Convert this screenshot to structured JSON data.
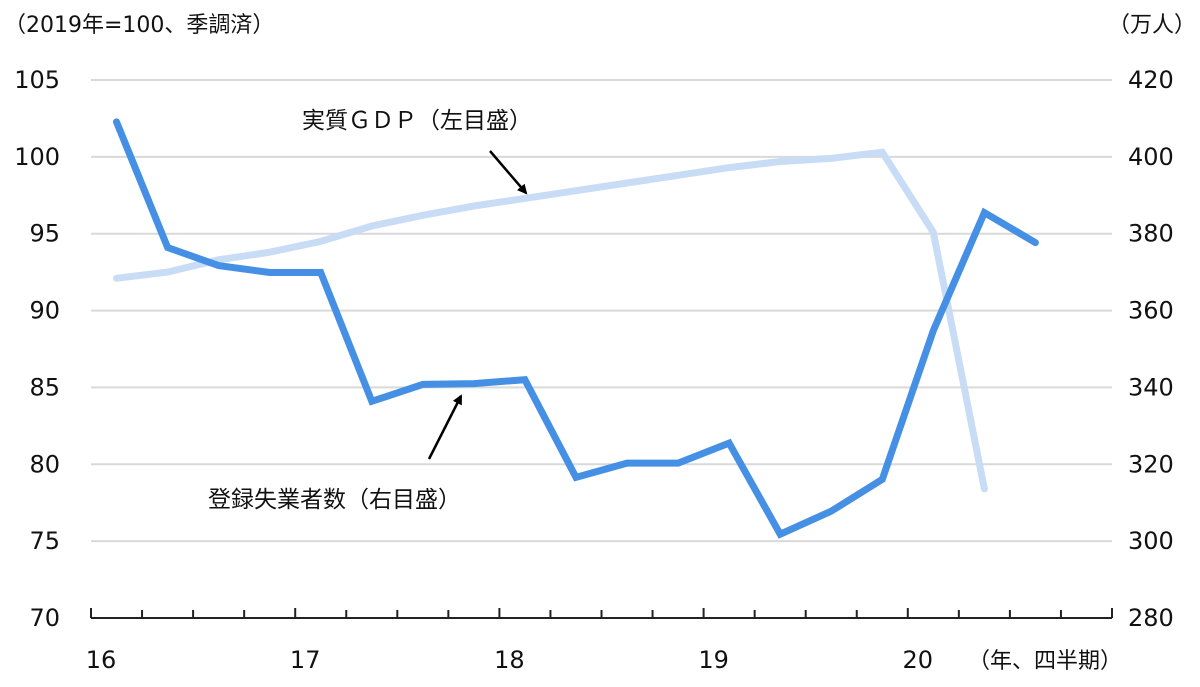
{
  "chart_data": {
    "type": "line",
    "title": "",
    "left_axis": {
      "unit_label": "（2019年=100、季調済）",
      "range": [
        70,
        105
      ],
      "ticks": [
        "105",
        "100",
        "95",
        "90",
        "85",
        "80",
        "75",
        "70"
      ]
    },
    "right_axis": {
      "unit_label": "（万人）",
      "range": [
        280,
        420
      ],
      "ticks": [
        "420",
        "400",
        "380",
        "360",
        "340",
        "320",
        "300",
        "280"
      ]
    },
    "x_axis": {
      "unit_label": "（年、四半期）",
      "tick_labels": [
        "16",
        "17",
        "18",
        "19",
        "20"
      ],
      "quarters_per_year": 4
    },
    "x": [
      "16Q1",
      "16Q2",
      "16Q3",
      "16Q4",
      "17Q1",
      "17Q2",
      "17Q3",
      "17Q4",
      "18Q1",
      "18Q2",
      "18Q3",
      "18Q4",
      "19Q1",
      "19Q2",
      "19Q3",
      "19Q4",
      "20Q1",
      "20Q2",
      "20Q3"
    ],
    "series": [
      {
        "name": "実質ＧＤＰ（左目盛）",
        "axis": "left",
        "color": "#C9DCF5",
        "values": [
          92.1,
          92.5,
          93.3,
          93.8,
          94.5,
          95.5,
          96.2,
          96.8,
          97.3,
          97.8,
          98.3,
          98.8,
          99.3,
          99.7,
          99.9,
          100.3,
          95.1,
          78.4,
          null
        ]
      },
      {
        "name": "登録失業者数（右目盛）",
        "axis": "right",
        "color": "#4590E4",
        "values": [
          409.1,
          376.4,
          371.7,
          369.9,
          369.9,
          336.4,
          340.8,
          341.0,
          342.0,
          316.6,
          320.3,
          320.3,
          325.5,
          301.8,
          307.8,
          316.1,
          354.8,
          385.5,
          377.7
        ]
      }
    ],
    "annotations": [
      {
        "text": "実質ＧＤＰ（左目盛）",
        "arrow_to": "GDP line"
      },
      {
        "text": "登録失業者数（右目盛）",
        "arrow_to": "unemployment line"
      }
    ],
    "grid": true,
    "legend": "none (inline annotations)"
  },
  "labels": {
    "left_unit": "（2019年=100、季調済）",
    "right_unit": "（万人）",
    "x_unit": "（年、四半期）",
    "gdp_annotation": "実質ＧＤＰ（左目盛）",
    "unemp_annotation": "登録失業者数（右目盛）"
  }
}
